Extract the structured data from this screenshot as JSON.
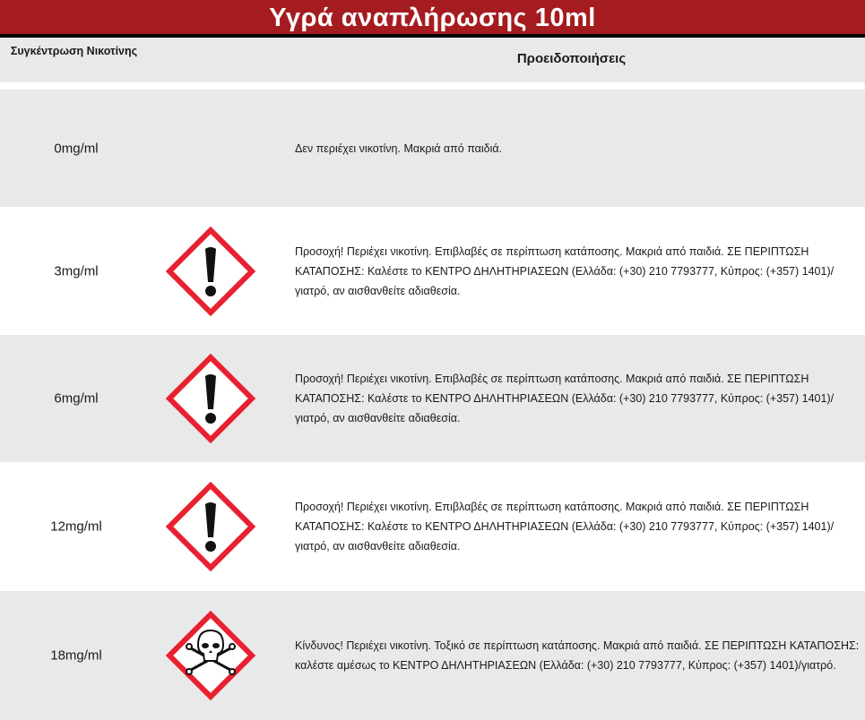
{
  "title": "Υγρά αναπλήρωσης 10ml",
  "header": {
    "concentration": "Συγκέντρωση Νικοτίνης",
    "warnings": "Προειδοποιήσεις"
  },
  "colors": {
    "title_bg": "#a51c20",
    "pictogram_border": "#e8202f",
    "row_alt": "#e9e9e9"
  },
  "rows": [
    {
      "concentration": "0mg/ml",
      "icon": "none",
      "warning": "Δεν περιέχει νικοτίνη. Μακριά από παιδιά."
    },
    {
      "concentration": "3mg/ml",
      "icon": "exclamation-hazard-icon",
      "warning": "Προσοχή! Περιέχει νικοτίνη. Επιβλαβές σε περίπτωση κατάποσης. Μακριά από παιδιά. ΣΕ ΠΕΡΙΠΤΩΣΗ ΚΑΤΑΠΟΣΗΣ: Καλέστε το ΚΕΝΤΡΟ ΔΗΛΗΤΗΡΙΑΣΕΩΝ (Ελλάδα: (+30) 210 7793777, Κύπρος: (+357) 1401)/γιατρό, αν αισθανθείτε αδιαθεσία."
    },
    {
      "concentration": "6mg/ml",
      "icon": "exclamation-hazard-icon",
      "warning": "Προσοχή! Περιέχει νικοτίνη. Επιβλαβές σε περίπτωση κατάποσης. Μακριά από παιδιά. ΣΕ ΠΕΡΙΠΤΩΣΗ ΚΑΤΑΠΟΣΗΣ: Καλέστε το ΚΕΝΤΡΟ ΔΗΛΗΤΗΡΙΑΣΕΩΝ (Ελλάδα: (+30) 210 7793777, Κύπρος: (+357) 1401)/γιατρό, αν αισθανθείτε αδιαθεσία."
    },
    {
      "concentration": "12mg/ml",
      "icon": "exclamation-hazard-icon",
      "warning": "Προσοχή! Περιέχει νικοτίνη. Επιβλαβές σε περίπτωση κατάποσης. Μακριά από παιδιά. ΣΕ ΠΕΡΙΠΤΩΣΗ ΚΑΤΑΠΟΣΗΣ: Καλέστε το ΚΕΝΤΡΟ ΔΗΛΗΤΗΡΙΑΣΕΩΝ (Ελλάδα: (+30) 210 7793777, Κύπρος: (+357) 1401)/γιατρό, αν αισθανθείτε αδιαθεσία."
    },
    {
      "concentration": "18mg/ml",
      "icon": "skull-crossbones-hazard-icon",
      "warning": "Κίνδυνος! Περιέχει νικοτίνη. Τοξικό σε περίπτωση κατάποσης. Μακριά από παιδιά. ΣΕ ΠΕΡΙΠΤΩΣΗ ΚΑΤΑΠΟΣΗΣ: καλέστε αμέσως το ΚΕΝΤΡΟ ΔΗΛΗΤΗΡΙΑΣΕΩΝ (Ελλάδα: (+30) 210 7793777, Κύπρος: (+357) 1401)/γιατρό."
    }
  ]
}
